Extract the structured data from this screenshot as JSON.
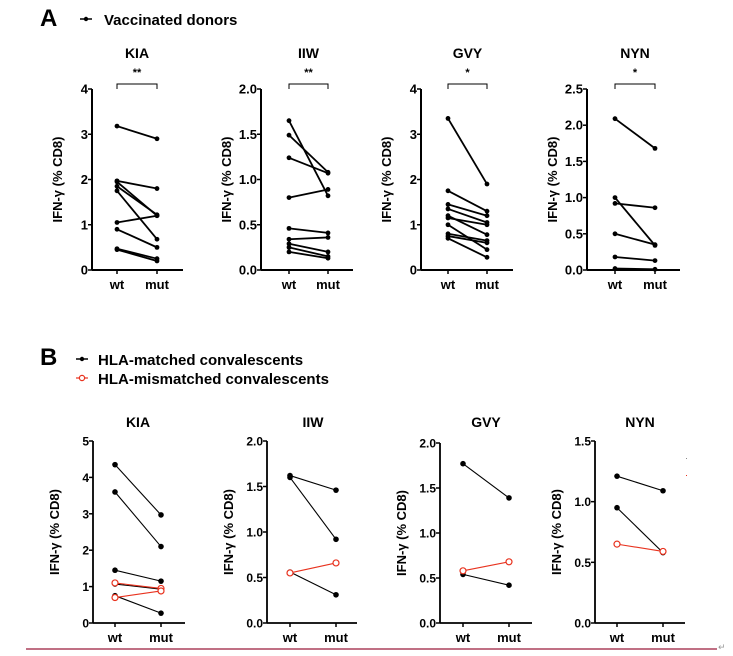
{
  "panel_a": {
    "letter": "A",
    "legend": [
      {
        "label": "Vaccinated donors",
        "color": "#000000",
        "marker": "filled-circle"
      }
    ]
  },
  "panel_b": {
    "letter": "B",
    "legend": [
      {
        "label": "HLA-matched convalescents",
        "color": "#000000",
        "marker": "filled-circle"
      },
      {
        "label": "HLA-mismatched convalescents",
        "color": "#e8321e",
        "marker": "open-circle"
      }
    ]
  },
  "return_mark": "↵",
  "chart_data": [
    {
      "type": "line",
      "panel": "A",
      "title": "KIA",
      "ylabel": "IFN-γ (% CD8)",
      "xlabel": "",
      "categories": [
        "wt",
        "mut"
      ],
      "ylim": [
        0,
        4
      ],
      "yticks": [
        "0",
        "1",
        "2",
        "3",
        "4"
      ],
      "ytick_values": [
        0,
        1,
        2,
        3,
        4
      ],
      "significance": "**",
      "series": [
        {
          "group": "Vaccinated donors",
          "values": [
            3.18,
            2.9
          ]
        },
        {
          "group": "Vaccinated donors",
          "values": [
            1.97,
            1.8
          ]
        },
        {
          "group": "Vaccinated donors",
          "values": [
            1.95,
            1.2
          ]
        },
        {
          "group": "Vaccinated donors",
          "values": [
            1.85,
            1.22
          ]
        },
        {
          "group": "Vaccinated donors",
          "values": [
            1.75,
            0.68
          ]
        },
        {
          "group": "Vaccinated donors",
          "values": [
            1.05,
            1.2
          ]
        },
        {
          "group": "Vaccinated donors",
          "values": [
            0.9,
            0.5
          ]
        },
        {
          "group": "Vaccinated donors",
          "values": [
            0.47,
            0.25
          ]
        },
        {
          "group": "Vaccinated donors",
          "values": [
            0.45,
            0.2
          ]
        }
      ]
    },
    {
      "type": "line",
      "panel": "A",
      "title": "IIW",
      "ylabel": "IFN-γ (% CD8)",
      "xlabel": "",
      "categories": [
        "wt",
        "mut"
      ],
      "ylim": [
        0,
        2
      ],
      "yticks": [
        "0.0",
        "0.5",
        "1.0",
        "1.5",
        "2.0"
      ],
      "ytick_values": [
        0,
        0.5,
        1,
        1.5,
        2
      ],
      "significance": "**",
      "series": [
        {
          "group": "Vaccinated donors",
          "values": [
            1.65,
            0.82
          ]
        },
        {
          "group": "Vaccinated donors",
          "values": [
            1.49,
            1.08
          ]
        },
        {
          "group": "Vaccinated donors",
          "values": [
            1.24,
            1.07
          ]
        },
        {
          "group": "Vaccinated donors",
          "values": [
            0.8,
            0.89
          ]
        },
        {
          "group": "Vaccinated donors",
          "values": [
            0.46,
            0.41
          ]
        },
        {
          "group": "Vaccinated donors",
          "values": [
            0.34,
            0.36
          ]
        },
        {
          "group": "Vaccinated donors",
          "values": [
            0.29,
            0.2
          ]
        },
        {
          "group": "Vaccinated donors",
          "values": [
            0.25,
            0.15
          ]
        },
        {
          "group": "Vaccinated donors",
          "values": [
            0.2,
            0.13
          ]
        }
      ]
    },
    {
      "type": "line",
      "panel": "A",
      "title": "GVY",
      "ylabel": "IFN-γ (% CD8)",
      "xlabel": "",
      "categories": [
        "wt",
        "mut"
      ],
      "ylim": [
        0,
        4
      ],
      "yticks": [
        "0",
        "1",
        "2",
        "3",
        "4"
      ],
      "ytick_values": [
        0,
        1,
        2,
        3,
        4
      ],
      "significance": "*",
      "series": [
        {
          "group": "Vaccinated donors",
          "values": [
            3.35,
            1.9
          ]
        },
        {
          "group": "Vaccinated donors",
          "values": [
            1.75,
            1.3
          ]
        },
        {
          "group": "Vaccinated donors",
          "values": [
            1.45,
            1.2
          ]
        },
        {
          "group": "Vaccinated donors",
          "values": [
            1.35,
            1.05
          ]
        },
        {
          "group": "Vaccinated donors",
          "values": [
            1.2,
            0.78
          ]
        },
        {
          "group": "Vaccinated donors",
          "values": [
            1.15,
            1.0
          ]
        },
        {
          "group": "Vaccinated donors",
          "values": [
            1.0,
            0.45
          ]
        },
        {
          "group": "Vaccinated donors",
          "values": [
            0.8,
            0.65
          ]
        },
        {
          "group": "Vaccinated donors",
          "values": [
            0.75,
            0.6
          ]
        },
        {
          "group": "Vaccinated donors",
          "values": [
            0.7,
            0.28
          ]
        }
      ]
    },
    {
      "type": "line",
      "panel": "A",
      "title": "NYN",
      "ylabel": "IFN-γ (% CD8)",
      "xlabel": "",
      "categories": [
        "wt",
        "mut"
      ],
      "ylim": [
        0,
        2.5
      ],
      "yticks": [
        "0.0",
        "0.5",
        "1.0",
        "1.5",
        "2.0",
        "2.5"
      ],
      "ytick_values": [
        0,
        0.5,
        1,
        1.5,
        2,
        2.5
      ],
      "significance": "*",
      "series": [
        {
          "group": "Vaccinated donors",
          "values": [
            2.09,
            1.68
          ]
        },
        {
          "group": "Vaccinated donors",
          "values": [
            1.0,
            0.34
          ]
        },
        {
          "group": "Vaccinated donors",
          "values": [
            0.92,
            0.86
          ]
        },
        {
          "group": "Vaccinated donors",
          "values": [
            0.5,
            0.35
          ]
        },
        {
          "group": "Vaccinated donors",
          "values": [
            0.18,
            0.13
          ]
        },
        {
          "group": "Vaccinated donors",
          "values": [
            0.02,
            0.01
          ]
        }
      ]
    },
    {
      "type": "line",
      "panel": "B",
      "title": "KIA",
      "ylabel": "IFN-γ (% CD8)",
      "xlabel": "",
      "categories": [
        "wt",
        "mut"
      ],
      "ylim": [
        0,
        5
      ],
      "yticks": [
        "0",
        "1",
        "2",
        "3",
        "4",
        "5"
      ],
      "ytick_values": [
        0,
        1,
        2,
        3,
        4,
        5
      ],
      "significance": "",
      "series": [
        {
          "group": "HLA-matched convalescents",
          "values": [
            4.35,
            2.97
          ]
        },
        {
          "group": "HLA-matched convalescents",
          "values": [
            3.6,
            2.1
          ]
        },
        {
          "group": "HLA-matched convalescents",
          "values": [
            1.45,
            1.15
          ]
        },
        {
          "group": "HLA-matched convalescents",
          "values": [
            1.07,
            0.93
          ]
        },
        {
          "group": "HLA-matched convalescents",
          "values": [
            0.75,
            0.27
          ]
        },
        {
          "group": "HLA-mismatched convalescents",
          "values": [
            1.1,
            0.95
          ]
        },
        {
          "group": "HLA-mismatched convalescents",
          "values": [
            0.7,
            0.88
          ]
        }
      ]
    },
    {
      "type": "line",
      "panel": "B",
      "title": "IIW",
      "ylabel": "IFN-γ (% CD8)",
      "xlabel": "",
      "categories": [
        "wt",
        "mut"
      ],
      "ylim": [
        0,
        2
      ],
      "yticks": [
        "0.0",
        "0.5",
        "1.0",
        "1.5",
        "2.0"
      ],
      "ytick_values": [
        0,
        0.5,
        1,
        1.5,
        2
      ],
      "significance": "",
      "series": [
        {
          "group": "HLA-matched convalescents",
          "values": [
            1.62,
            1.46
          ]
        },
        {
          "group": "HLA-matched convalescents",
          "values": [
            1.6,
            0.92
          ]
        },
        {
          "group": "HLA-matched convalescents",
          "values": [
            0.56,
            0.31
          ]
        },
        {
          "group": "HLA-mismatched convalescents",
          "values": [
            0.55,
            0.66
          ]
        }
      ]
    },
    {
      "type": "line",
      "panel": "B",
      "title": "GVY",
      "ylabel": "IFN-γ (% CD8)",
      "xlabel": "",
      "categories": [
        "wt",
        "mut"
      ],
      "ylim": [
        0,
        2
      ],
      "yticks": [
        "0.0",
        "0.5",
        "1.0",
        "1.5",
        "2.0"
      ],
      "ytick_values": [
        0,
        0.5,
        1,
        1.5,
        2
      ],
      "significance": "",
      "series": [
        {
          "group": "HLA-matched convalescents",
          "values": [
            1.77,
            1.39
          ]
        },
        {
          "group": "HLA-matched convalescents",
          "values": [
            0.54,
            0.42
          ]
        },
        {
          "group": "HLA-mismatched convalescents",
          "values": [
            0.58,
            0.68
          ]
        }
      ]
    },
    {
      "type": "line",
      "panel": "B",
      "title": "NYN",
      "ylabel": "IFN-γ (% CD8)",
      "xlabel": "",
      "categories": [
        "wt",
        "mut"
      ],
      "ylim": [
        0,
        1.5
      ],
      "yticks": [
        "0.0",
        "0.5",
        "1.0",
        "1.5"
      ],
      "ytick_values": [
        0,
        0.5,
        1,
        1.5
      ],
      "significance": "",
      "series": [
        {
          "group": "HLA-matched convalescents",
          "values": [
            1.21,
            1.09
          ]
        },
        {
          "group": "HLA-matched convalescents",
          "values": [
            0.95,
            0.58
          ]
        },
        {
          "group": "HLA-mismatched convalescents",
          "values": [
            0.65,
            0.59
          ]
        }
      ]
    }
  ]
}
